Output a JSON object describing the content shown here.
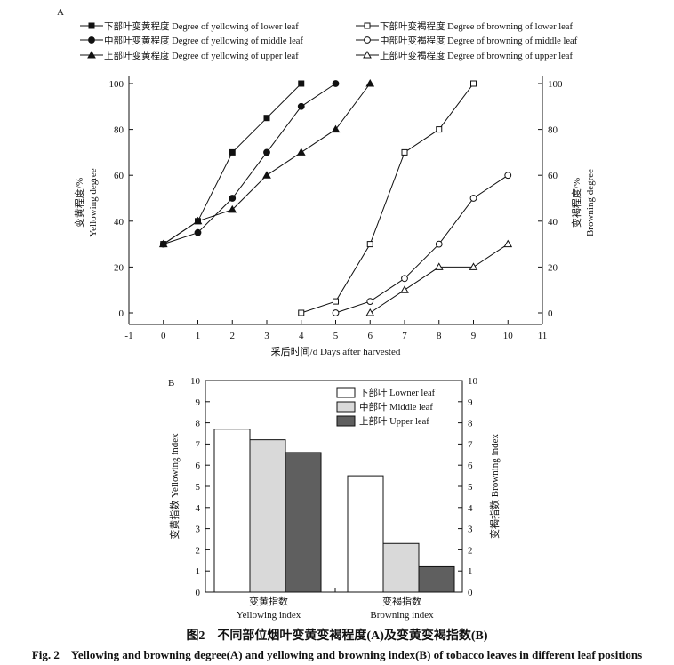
{
  "chart_data": [
    {
      "panel_label": "A",
      "type": "line",
      "xlabel": "采后时间/d Days after harvested",
      "ylabel_left": [
        "变黄程度/%",
        "Yellowing degree"
      ],
      "ylabel_right": [
        "变褐程度/%",
        "Browning degree"
      ],
      "xlim": [
        -1,
        11
      ],
      "ylim": [
        0,
        100
      ],
      "x_ticks": [
        "-1",
        "0",
        "1",
        "2",
        "3",
        "4",
        "5",
        "6",
        "7",
        "8",
        "9",
        "10",
        "11"
      ],
      "y_ticks": [
        "0",
        "20",
        "40",
        "60",
        "80",
        "100"
      ],
      "legend_position": "top",
      "series": [
        {
          "name": "下部叶变黄程度 Degree of yellowing of lower leaf",
          "axis": "left",
          "marker": "square",
          "filled": true,
          "points": [
            [
              0,
              30
            ],
            [
              1,
              40
            ],
            [
              2,
              70
            ],
            [
              3,
              85
            ],
            [
              4,
              100
            ]
          ]
        },
        {
          "name": "中部叶变黄程度 Degree of yellowing of middle leaf",
          "axis": "left",
          "marker": "circle",
          "filled": true,
          "points": [
            [
              0,
              30
            ],
            [
              1,
              35
            ],
            [
              2,
              50
            ],
            [
              3,
              70
            ],
            [
              4,
              90
            ],
            [
              5,
              100
            ]
          ]
        },
        {
          "name": "上部叶变黄程度 Degree of yellowing of upper leaf",
          "axis": "left",
          "marker": "triangle",
          "filled": true,
          "points": [
            [
              0,
              30
            ],
            [
              1,
              40
            ],
            [
              2,
              45
            ],
            [
              3,
              60
            ],
            [
              4,
              70
            ],
            [
              5,
              80
            ],
            [
              6,
              100
            ]
          ]
        },
        {
          "name": "下部叶变褐程度 Degree of browning of lower leaf",
          "axis": "right",
          "marker": "square",
          "filled": false,
          "points": [
            [
              4,
              0
            ],
            [
              5,
              5
            ],
            [
              6,
              30
            ],
            [
              7,
              70
            ],
            [
              8,
              80
            ],
            [
              9,
              100
            ]
          ]
        },
        {
          "name": "中部叶变褐程度 Degree of browning of middle leaf",
          "axis": "right",
          "marker": "circle",
          "filled": false,
          "points": [
            [
              5,
              0
            ],
            [
              6,
              5
            ],
            [
              7,
              15
            ],
            [
              8,
              30
            ],
            [
              9,
              50
            ],
            [
              10,
              60
            ]
          ]
        },
        {
          "name": "上部叶变褐程度 Degree of browning of upper leaf",
          "axis": "right",
          "marker": "triangle",
          "filled": false,
          "points": [
            [
              6,
              0
            ],
            [
              7,
              10
            ],
            [
              8,
              20
            ],
            [
              9,
              20
            ],
            [
              10,
              30
            ]
          ]
        }
      ]
    },
    {
      "panel_label": "B",
      "type": "bar",
      "ylabel_left": "变黄指数 Yellowing index",
      "ylabel_right": "变褐指数 Browning index",
      "ylim": [
        0,
        10
      ],
      "y_ticks": [
        "0",
        "1",
        "2",
        "3",
        "4",
        "5",
        "6",
        "7",
        "8",
        "9",
        "10"
      ],
      "categories": [
        {
          "cn": "变黄指数",
          "en": "Yellowing index"
        },
        {
          "cn": "变褐指数",
          "en": "Browning index"
        }
      ],
      "legend_position": "top-right",
      "series": [
        {
          "name": "下部叶 Lowner leaf",
          "color": "#ffffff",
          "values": [
            7.7,
            5.5
          ]
        },
        {
          "name": "中部叶 Middle leaf",
          "color": "#d9d9d9",
          "values": [
            7.2,
            2.3
          ]
        },
        {
          "name": "上部叶 Upper leaf",
          "color": "#5f5f5f",
          "values": [
            6.6,
            1.2
          ]
        }
      ]
    }
  ],
  "caption_cn": "图2　不同部位烟叶变黄变褐程度(A)及变黄变褐指数(B)",
  "caption_en": "Fig. 2　Yellowing and browning degree(A) and yellowing and browning index(B) of tobacco leaves in different leaf positions"
}
